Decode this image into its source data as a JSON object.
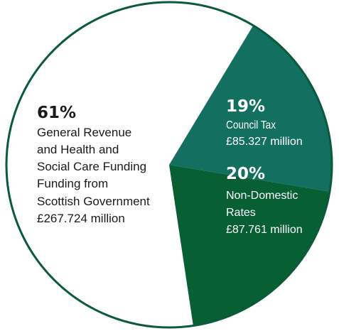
{
  "chart_data": {
    "type": "pie",
    "title": "",
    "colors": {
      "outline": "#0b5a3c",
      "background": "#ffffff",
      "dark_text": "#1a1a1a",
      "light_text": "#ffffff"
    },
    "slices": [
      {
        "percent": 61,
        "percent_label": "61%",
        "lines": [
          "General Revenue",
          "and Health and",
          "Social Care Funding",
          "Funding from",
          "Scottish Government",
          "£267.724 million"
        ],
        "value_millions": 267.724,
        "color": "#ffffff"
      },
      {
        "percent": 19,
        "percent_label": "19%",
        "lines": [
          "Council Tax",
          "£85.327 million"
        ],
        "value_millions": 85.327,
        "color": "#137060"
      },
      {
        "percent": 20,
        "percent_label": "20%",
        "lines": [
          "Non-Domestic",
          "Rates",
          "£87.761 million"
        ],
        "value_millions": 87.761,
        "color": "#085f33"
      }
    ]
  }
}
